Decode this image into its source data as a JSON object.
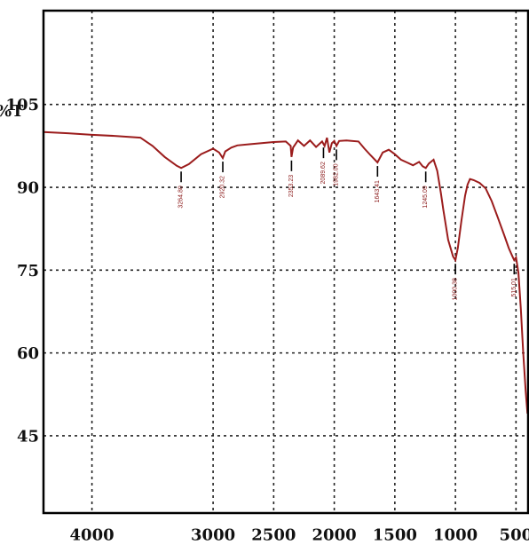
{
  "chart_data": {
    "type": "line",
    "ylabel": "%T",
    "xlim": [
      4400,
      400
    ],
    "ylim": [
      31,
      122
    ],
    "x_ticks": [
      4000,
      3000,
      2500,
      2000,
      1500,
      1000,
      500
    ],
    "x_tick_labels": [
      "4000",
      "3000",
      "2500",
      "2000",
      "1500",
      "1000",
      "500"
    ],
    "y_ticks": [
      105,
      90,
      75,
      60,
      45
    ],
    "y_tick_labels": [
      "105",
      "90",
      "75",
      "60",
      "45"
    ],
    "grid": true,
    "colors": {
      "series": "#9b1c1c",
      "grid": "#222222",
      "frame": "#000000"
    },
    "series": [
      {
        "x": [
          4400,
          4200,
          4000,
          3800,
          3600,
          3500,
          3400,
          3300,
          3264,
          3200,
          3100,
          3000,
          2950,
          2920,
          2900,
          2850,
          2800,
          2700,
          2600,
          2500,
          2400,
          2360,
          2353,
          2340,
          2300,
          2250,
          2200,
          2150,
          2100,
          2080,
          2060,
          2040,
          2020,
          2000,
          1982,
          1960,
          1900,
          1800,
          1750,
          1700,
          1643,
          1600,
          1550,
          1500,
          1450,
          1400,
          1350,
          1300,
          1270,
          1245,
          1220,
          1180,
          1150,
          1120,
          1100,
          1060,
          1020,
          1000,
          980,
          950,
          920,
          900,
          880,
          850,
          800,
          750,
          700,
          650,
          600,
          560,
          530,
          515,
          500,
          480,
          460,
          440,
          420,
          405
        ],
        "y": [
          100.0,
          99.8,
          99.5,
          99.3,
          99.0,
          97.5,
          95.5,
          93.9,
          93.5,
          94.2,
          96.0,
          97.0,
          96.3,
          95.3,
          96.5,
          97.2,
          97.6,
          97.8,
          98.0,
          98.2,
          98.3,
          97.5,
          95.5,
          97.2,
          98.5,
          97.5,
          98.5,
          97.3,
          98.3,
          97.5,
          99.0,
          96.3,
          98.0,
          98.4,
          97.5,
          98.4,
          98.5,
          98.3,
          97.0,
          95.8,
          94.5,
          96.3,
          96.8,
          96.0,
          95.0,
          94.5,
          94.0,
          94.6,
          93.8,
          93.5,
          94.3,
          95.0,
          93.0,
          89.0,
          86.0,
          80.5,
          77.5,
          76.8,
          79.0,
          84.0,
          88.5,
          90.5,
          91.5,
          91.3,
          90.8,
          89.8,
          87.5,
          84.5,
          81.5,
          79.0,
          77.5,
          76.8,
          77.3,
          74.5,
          68.0,
          60.0,
          53.0,
          49.0
        ]
      }
    ],
    "annotations": [
      {
        "x": 3264,
        "label": "3264.80"
      },
      {
        "x": 2920,
        "label": "2920.32"
      },
      {
        "x": 2353,
        "label": "2353.23"
      },
      {
        "x": 2089,
        "label": "2089.62"
      },
      {
        "x": 1982,
        "label": "1982.00"
      },
      {
        "x": 1643,
        "label": "1643.41"
      },
      {
        "x": 1245,
        "label": "1245.09"
      },
      {
        "x": 1000,
        "label": "1000.38"
      },
      {
        "x": 515,
        "label": "515.01"
      }
    ]
  }
}
